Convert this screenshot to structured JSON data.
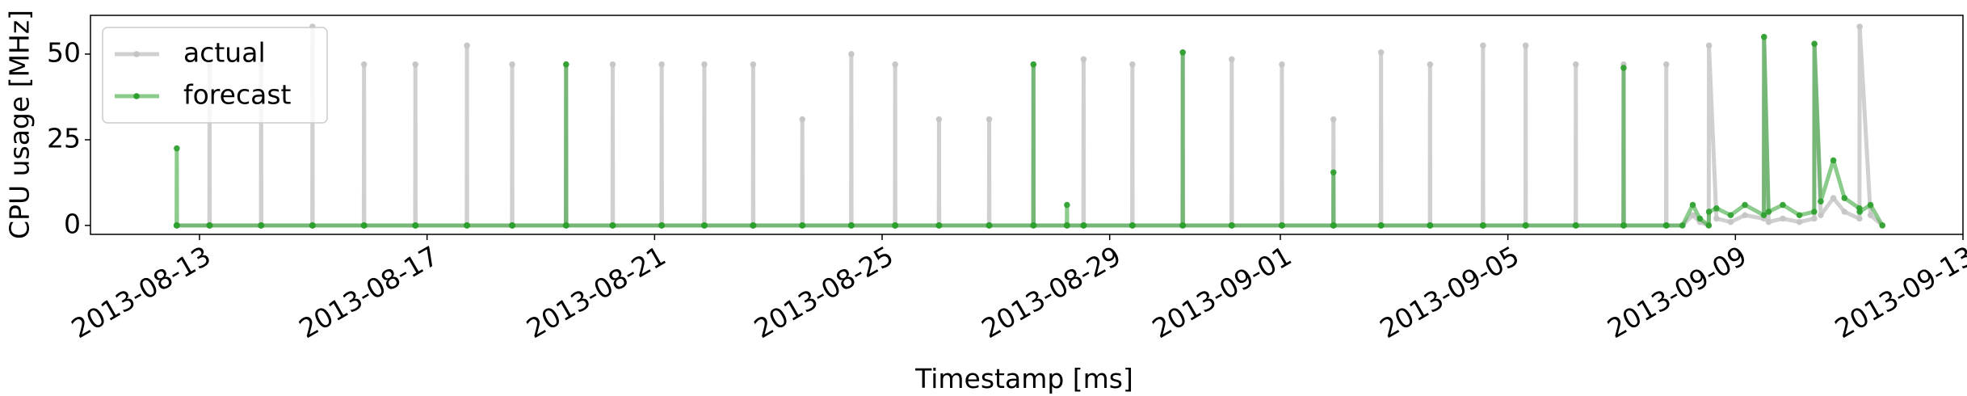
{
  "chart_data": {
    "type": "line",
    "xlabel": "Timestamp [ms]",
    "ylabel": "CPU usage [MHz]",
    "x": [
      "2013-08-12 14:20",
      "2013-08-12 14:25",
      "2013-08-12 14:30",
      "2013-08-13 04:10",
      "2013-08-13 04:15",
      "2013-08-13 04:20",
      "2013-08-14 01:55",
      "2013-08-14 02:00",
      "2013-08-14 02:05",
      "2013-08-14 23:35",
      "2013-08-14 23:40",
      "2013-08-14 23:45",
      "2013-08-15 21:20",
      "2013-08-15 21:25",
      "2013-08-15 21:30",
      "2013-08-16 19:00",
      "2013-08-16 19:05",
      "2013-08-16 19:10",
      "2013-08-17 16:45",
      "2013-08-17 16:50",
      "2013-08-17 16:55",
      "2013-08-18 11:50",
      "2013-08-18 11:55",
      "2013-08-18 12:00",
      "2013-08-19 10:35",
      "2013-08-19 10:40",
      "2013-08-19 10:45",
      "2013-08-20 06:15",
      "2013-08-20 06:20",
      "2013-08-20 06:25",
      "2013-08-21 02:55",
      "2013-08-21 03:00",
      "2013-08-21 03:05",
      "2013-08-21 20:55",
      "2013-08-21 21:00",
      "2013-08-21 21:05",
      "2013-08-22 17:30",
      "2013-08-22 17:35",
      "2013-08-22 17:40",
      "2013-08-23 14:15",
      "2013-08-23 14:20",
      "2013-08-23 14:25",
      "2013-08-24 10:55",
      "2013-08-24 11:00",
      "2013-08-24 11:05",
      "2013-08-25 05:25",
      "2013-08-25 05:30",
      "2013-08-25 05:35",
      "2013-08-25 23:55",
      "2013-08-26 00:00",
      "2013-08-26 00:05",
      "2013-08-26 21:05",
      "2013-08-26 21:10",
      "2013-08-26 21:15",
      "2013-08-27 15:45",
      "2013-08-27 15:50",
      "2013-08-27 15:55",
      "2013-08-28 05:55",
      "2013-08-28 06:00",
      "2013-08-28 06:05",
      "2013-08-28 12:55",
      "2013-08-28 13:00",
      "2013-08-28 13:05",
      "2013-08-29 09:30",
      "2013-08-29 09:35",
      "2013-08-29 09:40",
      "2013-08-30 06:45",
      "2013-08-30 06:50",
      "2013-08-30 06:55",
      "2013-08-31 03:25",
      "2013-08-31 03:30",
      "2013-08-31 03:35",
      "2013-09-01 00:35",
      "2013-09-01 00:40",
      "2013-09-01 00:45",
      "2013-09-01 22:20",
      "2013-09-01 22:25",
      "2013-09-01 22:30",
      "2013-09-02 18:25",
      "2013-09-02 18:30",
      "2013-09-02 18:35",
      "2013-09-03 15:05",
      "2013-09-03 15:10",
      "2013-09-03 15:15",
      "2013-09-04 13:25",
      "2013-09-04 13:30",
      "2013-09-04 13:35",
      "2013-09-05 07:25",
      "2013-09-05 07:30",
      "2013-09-05 07:35",
      "2013-09-06 04:35",
      "2013-09-06 04:40",
      "2013-09-06 04:45",
      "2013-09-07 00:45",
      "2013-09-07 00:50",
      "2013-09-07 00:55",
      "2013-09-07 18:45",
      "2013-09-07 18:50",
      "2013-09-07 18:55",
      "2013-09-08 01:40",
      "2013-09-08 06:00",
      "2013-09-08 09:00",
      "2013-09-08 12:45",
      "2013-09-08 12:50",
      "2013-09-08 16:00",
      "2013-09-08 22:00",
      "2013-09-09 04:00",
      "2013-09-09 12:00",
      "2013-09-09 12:05",
      "2013-09-09 14:00",
      "2013-09-09 20:00",
      "2013-09-10 03:00",
      "2013-09-10 09:15",
      "2013-09-10 09:20",
      "2013-09-10 12:00",
      "2013-09-10 17:20",
      "2013-09-10 22:00",
      "2013-09-11 04:20",
      "2013-09-11 04:25",
      "2013-09-11 09:00",
      "2013-09-11 14:00"
    ],
    "series": [
      {
        "name": "actual",
        "color": "#c4c4c4",
        "values": [
          0,
          0,
          0,
          0,
          47,
          0,
          0,
          47,
          0,
          0,
          58,
          0,
          0,
          47,
          0,
          0,
          47,
          0,
          0,
          52.5,
          0,
          0,
          47,
          0,
          0,
          47,
          0,
          0,
          47,
          0,
          0,
          47,
          0,
          0,
          47,
          0,
          0,
          47,
          0,
          0,
          31,
          0,
          0,
          50,
          0,
          0,
          47,
          0,
          0,
          31,
          0,
          0,
          31,
          0,
          0,
          47,
          0,
          0,
          0,
          0,
          0,
          48.5,
          0,
          0,
          47,
          0,
          0,
          50.5,
          0,
          0,
          48.5,
          0,
          0,
          47,
          0,
          0,
          31,
          0,
          0,
          50.5,
          0,
          0,
          47,
          0,
          0,
          52.5,
          0,
          0,
          52.5,
          0,
          0,
          47,
          0,
          0,
          47,
          0,
          0,
          47,
          0,
          0,
          3,
          1,
          0,
          52.5,
          2,
          1,
          3,
          2,
          55,
          1,
          2,
          1,
          2,
          53,
          3,
          8,
          4,
          2,
          58,
          3,
          0
        ]
      },
      {
        "name": "forecast",
        "color": "#2ca02c",
        "values": [
          0,
          22.5,
          0,
          0,
          0,
          0,
          0,
          0,
          0,
          0,
          0,
          0,
          0,
          0,
          0,
          0,
          0,
          0,
          0,
          0,
          0,
          0,
          0,
          0,
          0,
          47,
          0,
          0,
          0,
          0,
          0,
          0,
          0,
          0,
          0,
          0,
          0,
          0,
          0,
          0,
          0,
          0,
          0,
          0,
          0,
          0,
          0,
          0,
          0,
          0,
          0,
          0,
          0,
          0,
          0,
          47,
          0,
          0,
          6,
          0,
          0,
          0,
          0,
          0,
          0,
          0,
          0,
          50.5,
          0,
          0,
          0,
          0,
          0,
          0,
          0,
          0,
          15.5,
          0,
          0,
          0,
          0,
          0,
          0,
          0,
          0,
          0,
          0,
          0,
          0,
          0,
          0,
          0,
          0,
          0,
          46,
          0,
          0,
          0,
          0,
          0,
          6,
          2,
          0,
          4,
          5,
          3,
          6,
          3,
          55,
          4,
          6,
          3,
          4,
          53,
          7,
          19,
          8,
          5,
          4,
          6,
          0
        ]
      }
    ],
    "xlim": [
      "2013-08-11 02:00",
      "2013-09-13 00:00"
    ],
    "xticks": [
      "2013-08-13",
      "2013-08-17",
      "2013-08-21",
      "2013-08-25",
      "2013-08-29",
      "2013-09-01",
      "2013-09-05",
      "2013-09-09",
      "2013-09-13"
    ],
    "ylim": [
      -2.6,
      61.3
    ],
    "yticks": [
      0,
      25,
      50
    ],
    "grid": false,
    "legend": "upper left"
  }
}
